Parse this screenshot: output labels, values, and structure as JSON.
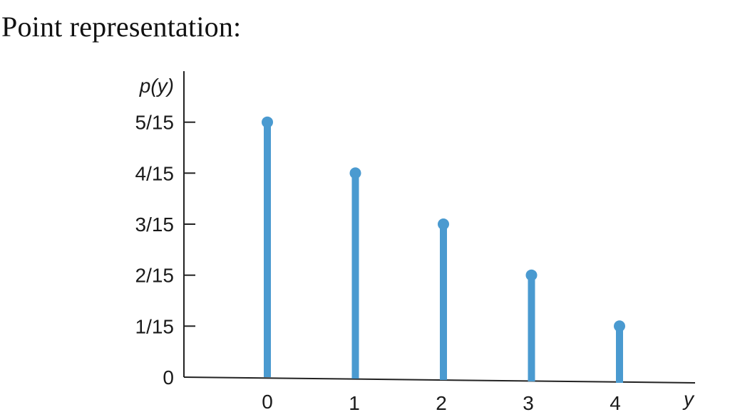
{
  "page": {
    "heading": "Point representation:"
  },
  "chart_data": {
    "type": "stem",
    "title": "",
    "xlabel": "y",
    "ylabel": "p(y)",
    "x": [
      0,
      1,
      2,
      3,
      4
    ],
    "values": [
      0.3333,
      0.2667,
      0.2,
      0.1333,
      0.0667
    ],
    "xticks": [
      "0",
      "1",
      "2",
      "3",
      "4"
    ],
    "yticks": [
      {
        "value": 0,
        "label": "0"
      },
      {
        "value": 0.0667,
        "label": "1/15"
      },
      {
        "value": 0.1333,
        "label": "2/15"
      },
      {
        "value": 0.2,
        "label": "3/15"
      },
      {
        "value": 0.2667,
        "label": "4/15"
      },
      {
        "value": 0.3333,
        "label": "5/15"
      }
    ],
    "ylim": [
      0,
      0.4
    ],
    "xlim": [
      -1,
      4.8
    ],
    "grid": false,
    "color": "#4a9ad0"
  }
}
